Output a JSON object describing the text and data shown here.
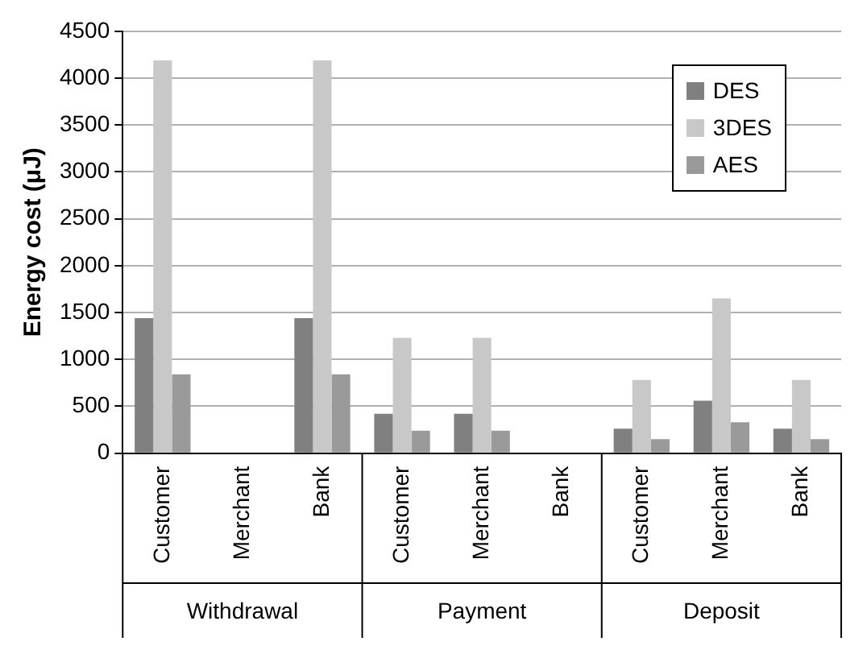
{
  "chart_data": {
    "type": "bar",
    "ylabel": "Energy cost (μJ)",
    "categories": [
      "Customer",
      "Merchant",
      "Bank",
      "Customer",
      "Merchant",
      "Bank",
      "Customer",
      "Merchant",
      "Bank"
    ],
    "series": [
      {
        "name": "DES",
        "color": "#808080",
        "values": [
          1440,
          null,
          1440,
          420,
          420,
          null,
          260,
          560,
          260
        ]
      },
      {
        "name": "3DES",
        "color": "#c8c8c8",
        "values": [
          4190,
          null,
          4190,
          1230,
          1230,
          null,
          780,
          1650,
          780
        ]
      },
      {
        "name": "AES",
        "color": "#9a9a9a",
        "values": [
          840,
          null,
          840,
          240,
          240,
          null,
          150,
          330,
          150
        ]
      }
    ],
    "annotations": [
      "Withdrawal",
      "Payment",
      "Deposit"
    ],
    "ylim": [
      0,
      4500
    ],
    "yticks": [
      0,
      500,
      1000,
      1500,
      2000,
      2500,
      3000,
      3500,
      4000,
      4500
    ],
    "grid": "y",
    "legend": "top right"
  }
}
